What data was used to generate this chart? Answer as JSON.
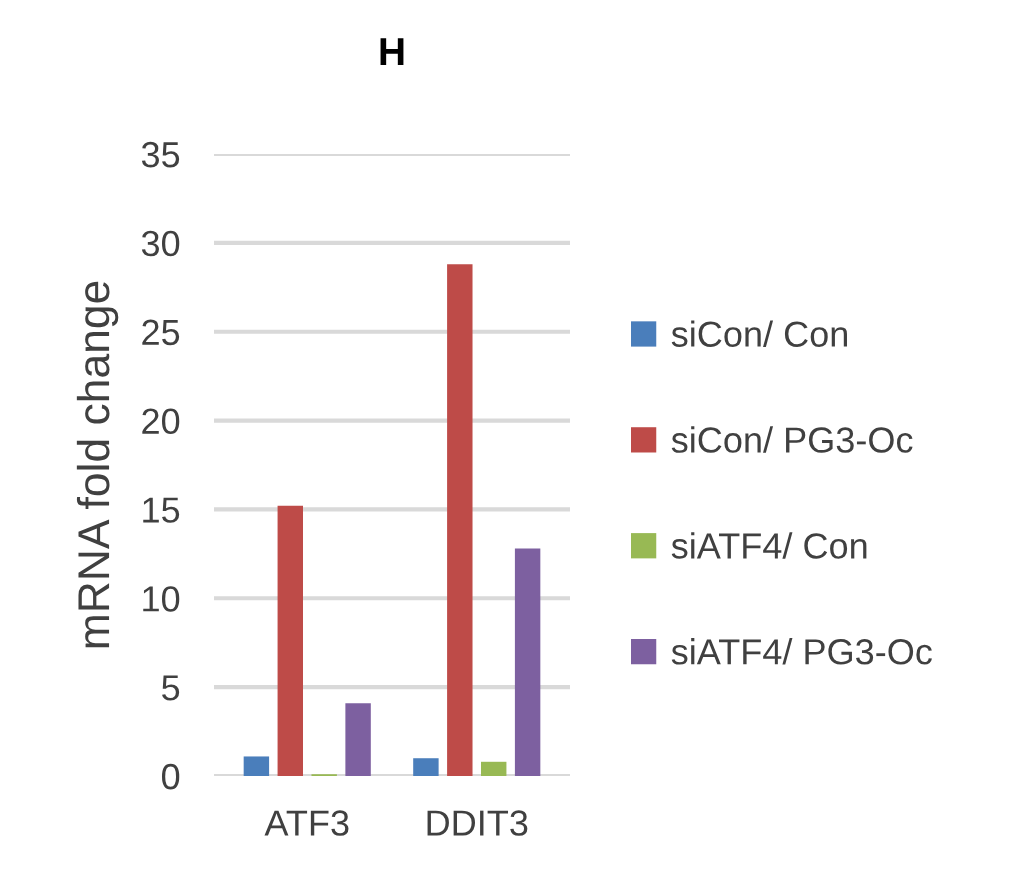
{
  "chart_data": {
    "type": "bar",
    "title": "H",
    "ylabel": "mRNA fold change",
    "categories": [
      "ATF3",
      "DDIT3"
    ],
    "series": [
      {
        "name": "siCon/ Con",
        "color": "#4a7ebb",
        "values": [
          1.1,
          1.0
        ]
      },
      {
        "name": "siCon/ PG3-Oc",
        "color": "#be4b48",
        "values": [
          15.2,
          28.8
        ]
      },
      {
        "name": "siATF4/ Con",
        "color": "#98b954",
        "values": [
          0.1,
          0.8
        ]
      },
      {
        "name": "siATF4/ PG3-Oc",
        "color": "#7d60a0",
        "values": [
          4.1,
          12.8
        ]
      }
    ],
    "ylim": [
      0,
      35
    ],
    "yticks": [
      0,
      5,
      10,
      15,
      20,
      25,
      30,
      35
    ],
    "grid": "y",
    "legend": "right"
  }
}
